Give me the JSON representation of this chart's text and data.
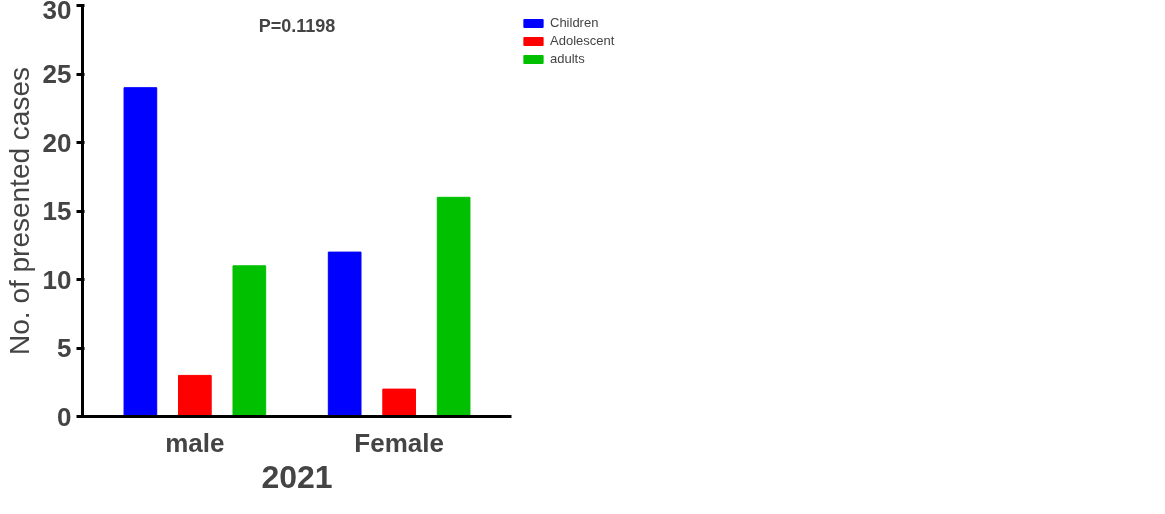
{
  "chart_data": {
    "type": "bar",
    "xlabel": "2021",
    "ylabel": "No. of presented cases",
    "annotations": [
      "P=0.1198"
    ],
    "categories": [
      "male",
      "Female"
    ],
    "series": [
      {
        "name": "Children",
        "color": "#0000ff",
        "values": [
          24,
          12
        ]
      },
      {
        "name": "Adolescent",
        "color": "#ff0000",
        "values": [
          3,
          2
        ]
      },
      {
        "name": "adults",
        "color": "#00c000",
        "values": [
          11,
          16
        ]
      }
    ],
    "ylim": [
      0,
      30
    ],
    "yticks": [
      0,
      5,
      10,
      15,
      20,
      25,
      30
    ],
    "grid": false,
    "legend": "top right"
  }
}
